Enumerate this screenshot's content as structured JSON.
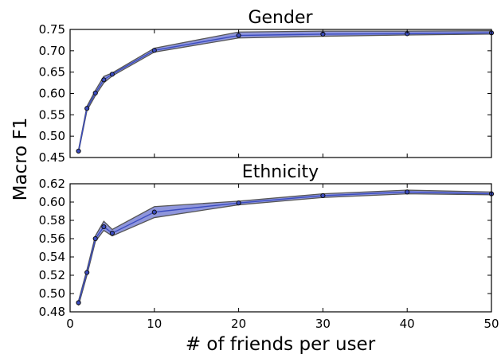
{
  "chart_data": [
    {
      "type": "line",
      "title": "Gender",
      "ylim": [
        0.45,
        0.75
      ],
      "yticks": [
        "0.45",
        "0.50",
        "0.55",
        "0.60",
        "0.65",
        "0.70",
        "0.75"
      ],
      "xlim": [
        0,
        50
      ],
      "x": [
        1,
        2,
        3,
        4,
        5,
        10,
        20,
        30,
        40,
        50
      ],
      "series": [
        {
          "values": [
            0.465,
            0.565,
            0.601,
            0.632,
            0.645,
            0.701,
            0.736,
            0.739,
            0.74,
            0.742
          ],
          "lower": [
            0.462,
            0.56,
            0.595,
            0.625,
            0.641,
            0.697,
            0.73,
            0.734,
            0.737,
            0.739
          ],
          "upper": [
            0.468,
            0.57,
            0.607,
            0.64,
            0.648,
            0.706,
            0.744,
            0.746,
            0.746,
            0.747
          ],
          "color": "#3b4cc0",
          "fill": "#7b84d6"
        }
      ]
    },
    {
      "type": "line",
      "title": "Ethnicity",
      "ylim": [
        0.48,
        0.62
      ],
      "yticks": [
        "0.48",
        "0.50",
        "0.52",
        "0.54",
        "0.56",
        "0.58",
        "0.60",
        "0.62"
      ],
      "xlim": [
        0,
        50
      ],
      "xticks": [
        "0",
        "10",
        "20",
        "30",
        "40",
        "50"
      ],
      "xlabel": "# of friends per user",
      "x": [
        1,
        2,
        3,
        4,
        5,
        10,
        20,
        30,
        40,
        50
      ],
      "series": [
        {
          "values": [
            0.49,
            0.523,
            0.56,
            0.573,
            0.566,
            0.589,
            0.599,
            0.607,
            0.611,
            0.609
          ],
          "lower": [
            0.487,
            0.52,
            0.557,
            0.569,
            0.563,
            0.583,
            0.597,
            0.605,
            0.609,
            0.608
          ],
          "upper": [
            0.492,
            0.526,
            0.563,
            0.579,
            0.57,
            0.595,
            0.601,
            0.609,
            0.613,
            0.611
          ],
          "color": "#3b4cc0",
          "fill": "#7b84d6"
        }
      ]
    }
  ],
  "ylabel": "Macro F1"
}
